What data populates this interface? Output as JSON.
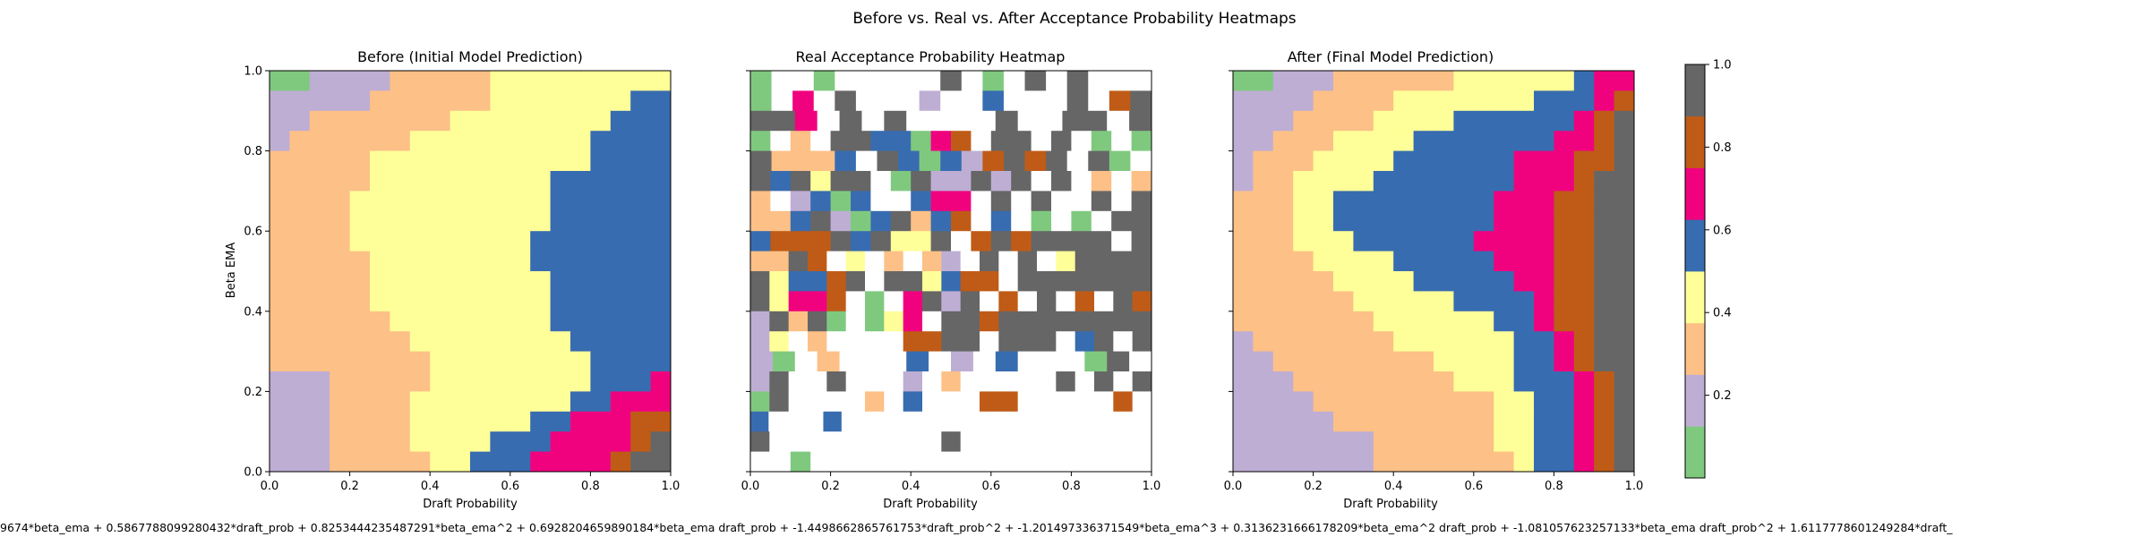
{
  "figure": {
    "suptitle": "Before vs. Real vs. After Acceptance Probability Heatmaps",
    "footer_formula": "9674*beta_ema + 0.5867788099280432*draft_prob + 0.8253444235487291*beta_ema^2 + 0.6928204659890184*beta_ema draft_prob + -1.4498662865761753*draft_prob^2 + -1.201497336371549*beta_ema^3 + 0.3136231666178209*beta_ema^2 draft_prob + -1.081057623257133*beta_ema draft_prob^2 + 1.6117778601249284*draft_"
  },
  "colors": {
    "palette": [
      "#7fc97f",
      "#beaed4",
      "#fdc086",
      "#ffff99",
      "#386cb0",
      "#f0027f",
      "#bf5b17",
      "#666666"
    ],
    "background": "#ffffff",
    "colormap": "Accent (8 discrete levels)"
  },
  "chart_data": [
    {
      "type": "heatmap",
      "title": "Before (Initial Model Prediction)",
      "xlabel": "Draft Probability",
      "ylabel": "Beta EMA",
      "xlim": [
        0,
        1
      ],
      "ylim": [
        0,
        1
      ],
      "x_ticks": [
        "0.0",
        "0.2",
        "0.4",
        "0.6",
        "0.8",
        "1.0"
      ],
      "y_ticks": [
        "0.0",
        "0.2",
        "0.4",
        "0.6",
        "0.8",
        "1.0"
      ],
      "grid": false,
      "rows_top_to_bottom": [
        "00111122222333333333",
        "11111222222333333344",
        "11222222233333333444",
        "12222223333333334444",
        "22222333333333334444",
        "22222333333333444444",
        "22223333333333444444",
        "22223333333333444444",
        "22223333333334444444",
        "22222333333334444444",
        "22222333333333444444",
        "22222333333333444444",
        "22222233333333444444",
        "22222223333333344444",
        "22222222333333334444",
        "11122222333333334445",
        "11122223333333344555",
        "11122223333334455566",
        "11122223333444555567",
        "11122222334445555677"
      ]
    },
    {
      "type": "heatmap",
      "title": "Real Acceptance Probability Heatmap",
      "xlabel": "Draft Probability",
      "xlim": [
        0,
        1
      ],
      "ylim": [
        0,
        1
      ],
      "x_ticks": [
        "0.0",
        "0.2",
        "0.4",
        "0.6",
        "0.8",
        "1.0"
      ],
      "grid": false,
      "rows_top_to_bottom": [
        "0--0-----7-0-7-7---",
        "0-5-7---1--4---7-67",
        "775-7-7----7--77-7",
        "0-2-7744056-77-7-0-0",
        "72224-740416767-70-",
        "747377-0711717-7-2-2",
        "2-1404--455-7-7--7-7",
        "22471047246-4-0-0-77",
        "4666747337-6767777-7",
        "2276-3-2-21-7-7-37777",
        "734467-773466-7777777",
        "73556-0-5717-6-7-6-76",
        "17270-035-77677777777",
        "13-2----6677-777-47-7",
        "10-2---4-1-4---07-",
        "17--7---1-2-----7-7-7",
        "07----2-4---66-----6-",
        "4---4-----------------",
        "7---------7----------",
        "--0-----------------"
      ]
    },
    {
      "type": "heatmap",
      "title": "After (Final Model Prediction)",
      "xlabel": "Draft Probability",
      "xlim": [
        0,
        1
      ],
      "ylim": [
        0,
        1
      ],
      "x_ticks": [
        "0.0",
        "0.2",
        "0.4",
        "0.6",
        "0.8",
        "1.0"
      ],
      "grid": false,
      "rows_top_to_bottom": [
        "00111222222333333455",
        "11112222333333344456",
        "11122223333444444567",
        "11222333344444445567",
        "12223333444444555667",
        "12233334444444555677",
        "22233444444445556677",
        "22233444444445556677",
        "22233344444455556677",
        "22223333444445556677",
        "22222333344444556677",
        "22222233333444456677",
        "22222223333334456677",
        "12222222333333445677",
        "11222222223333445677",
        "11122222222333444567",
        "11112222222223344567",
        "11111222222223344567",
        "11111112222223344567",
        "11111112222222344567"
      ]
    },
    {
      "type": "colorbar",
      "ticks": [
        "0.2",
        "0.4",
        "0.6",
        "0.8",
        "1.0"
      ],
      "tick_values": [
        0.2,
        0.4,
        0.6,
        0.8,
        1.0
      ],
      "range": [
        0.0,
        1.0
      ],
      "levels": 8
    }
  ]
}
